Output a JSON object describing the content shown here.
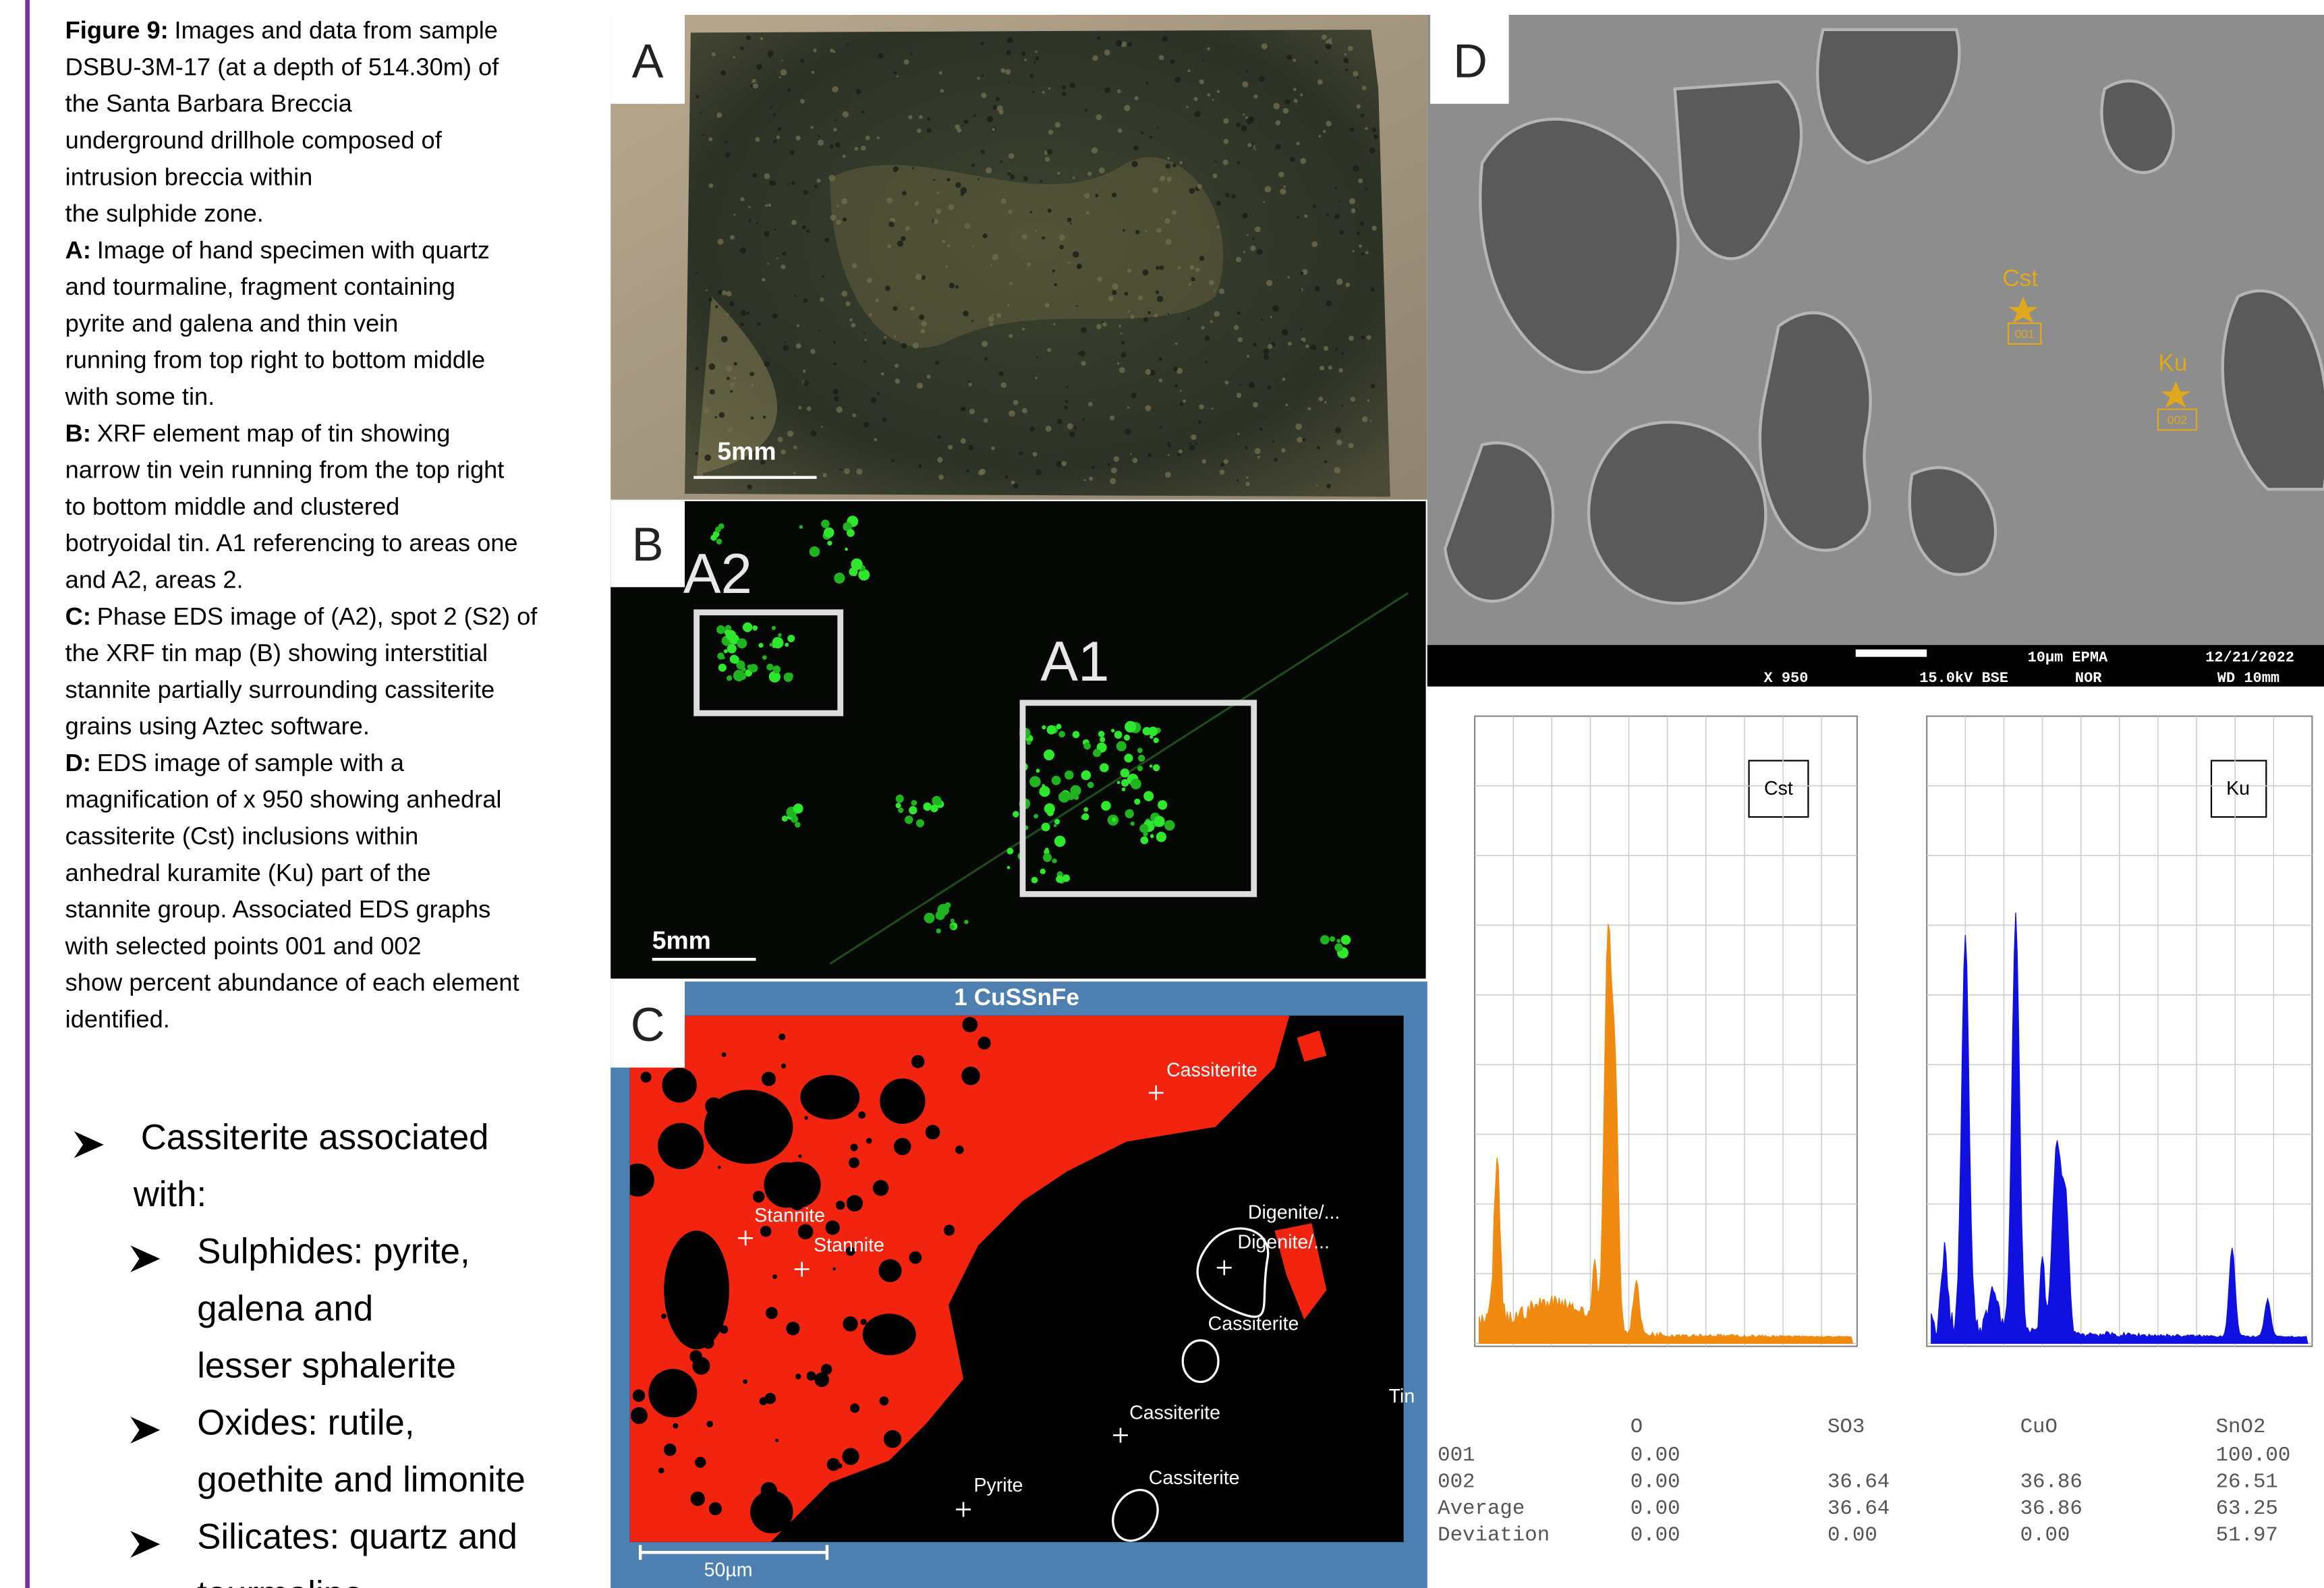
{
  "caption": [
    {
      "label": "Figure 9:",
      "text": "Images and data from sample"
    },
    {
      "text": "DSBU-3M-17 (at a depth of 514.30m) of"
    },
    {
      "text": "the Santa Barbara Breccia"
    },
    {
      "text": "underground drillhole composed of"
    },
    {
      "text": "intrusion breccia within"
    },
    {
      "text": "the sulphide zone."
    },
    {
      "label": "A:",
      "text": "Image of hand specimen with quartz"
    },
    {
      "text": "and tourmaline, fragment containing"
    },
    {
      "text": "pyrite and galena and thin vein"
    },
    {
      "text": "running from top right to bottom middle"
    },
    {
      "text": "with some tin."
    },
    {
      "label": "B:",
      "text": "XRF element map of tin showing"
    },
    {
      "text": "narrow tin vein running from the top right"
    },
    {
      "text": "to bottom middle and clustered"
    },
    {
      "text": "botryoidal tin. A1 referencing to areas one"
    },
    {
      "text": "and A2, areas 2."
    },
    {
      "label": "C:",
      "text": "Phase EDS image of (A2), spot 2 (S2) of"
    },
    {
      "text": "the XRF tin map (B) showing interstitial"
    },
    {
      "text": "stannite partially surrounding cassiterite"
    },
    {
      "text": "grains using Aztec software."
    },
    {
      "label": "D:",
      "text": "EDS image of sample with a"
    },
    {
      "text": "magnification of x 950 showing anhedral"
    },
    {
      "text": "cassiterite (Cst) inclusions within"
    },
    {
      "text": "anhedral kuramite (Ku) part of the"
    },
    {
      "text": "stannite group. Associated EDS graphs"
    },
    {
      "text": "with selected points 001 and 002"
    },
    {
      "text": "show percent abundance of each element"
    },
    {
      "text": "identified."
    }
  ],
  "bullets": [
    {
      "lines": [
        "Cassiterite associated",
        "with:"
      ],
      "sub": [
        {
          "lines": [
            "Sulphides: pyrite,",
            "galena and",
            "lesser sphalerite"
          ]
        },
        {
          "lines": [
            "Oxides: rutile,",
            "goethite and limonite"
          ]
        },
        {
          "lines": [
            "Silicates: quartz and",
            "tourmaline"
          ]
        }
      ]
    }
  ],
  "panels": {
    "a": {
      "letter": "A",
      "scale": "5mm"
    },
    "b": {
      "letter": "B",
      "scale": "5mm",
      "areas": [
        "A2",
        "A1"
      ]
    },
    "c": {
      "letter": "C",
      "title": "1 CuSSnFe",
      "scale": "50µm",
      "labels": [
        "Cassiterite",
        "Stannite",
        "Stannite",
        "Digenite/...",
        "Digenite/...",
        "Cassiterite",
        "Cassiterite",
        "Cassiterite",
        "Pyrite",
        "Tin"
      ]
    },
    "d": {
      "letter": "D",
      "points": [
        {
          "label": "Cst",
          "id": "001"
        },
        {
          "label": "Ku",
          "id": "002"
        }
      ],
      "info": [
        "X 950",
        "15.0kV BSE",
        "10µm  EPMA",
        "NOR",
        "12/21/2022",
        "WD 10mm"
      ]
    }
  },
  "spectra": [
    {
      "label": "Cst"
    },
    {
      "label": "Ku"
    }
  ],
  "table": {
    "columns": [
      "O",
      "SO3",
      "CuO",
      "SnO2"
    ],
    "rows": [
      {
        "label": "001",
        "cells": [
          "0.00",
          null,
          null,
          "100.00"
        ]
      },
      {
        "label": "002",
        "cells": [
          "0.00",
          "36.64",
          "36.86",
          "26.51"
        ]
      },
      {
        "label": "Average",
        "cells": [
          "0.00",
          "36.64",
          "36.86",
          "63.25"
        ]
      },
      {
        "label": "Deviation",
        "cells": [
          "0.00",
          "0.00",
          "0.00",
          "51.97"
        ]
      }
    ]
  }
}
